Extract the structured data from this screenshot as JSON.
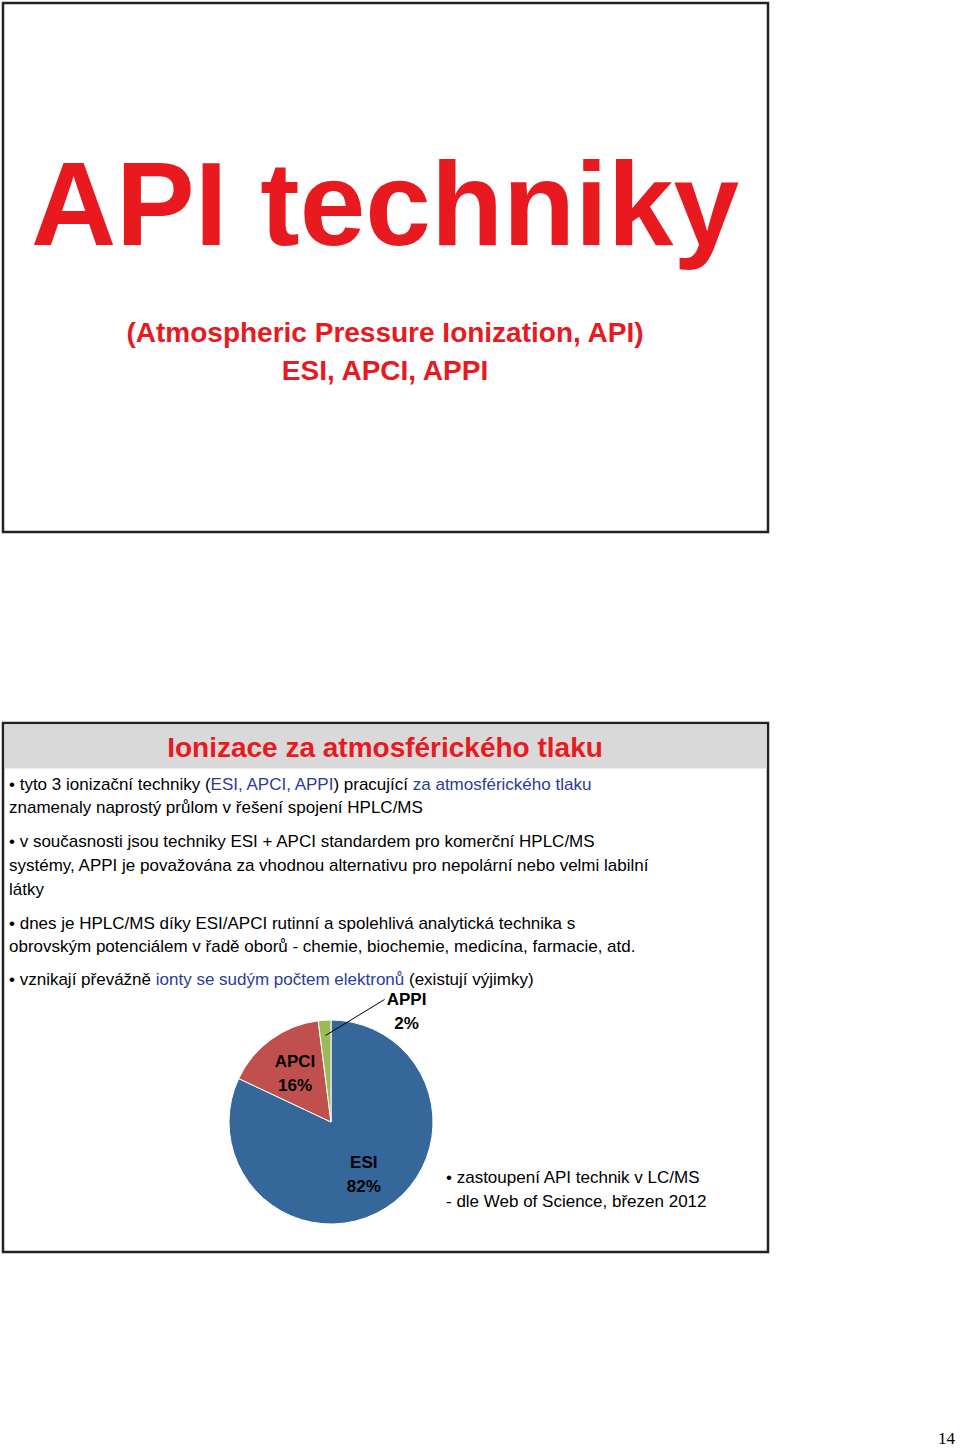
{
  "slide1": {
    "title": "API techniky",
    "subtitle": [
      "(Atmospheric Pressure Ionization, API)",
      "ESI, APCI, APPI"
    ]
  },
  "slide2": {
    "title": "Ionizace za atmosférického tlaku",
    "bullets": [
      [
        {
          "text": "• tyto 3 ionizační techniky (",
          "color": "#000000"
        },
        {
          "text": "ESI, APCI, APPI",
          "color": "#2a3c9c"
        },
        {
          "text": ") pracující ",
          "color": "#000000"
        },
        {
          "text": "za atmosférického tlaku",
          "color": "#2a3c9c"
        }
      ],
      [
        {
          "text": "znamenaly naprostý průlom v řešení spojení HPLC/MS",
          "color": "#000000"
        }
      ],
      [
        {
          "text": "• v současnosti jsou techniky ESI + APCI standardem pro komerční HPLC/MS",
          "color": "#000000"
        }
      ],
      [
        {
          "text": "systémy, APPI je považována za vhodnou alternativu pro nepolární nebo velmi labilní",
          "color": "#000000"
        }
      ],
      [
        {
          "text": "látky",
          "color": "#000000"
        }
      ],
      [
        {
          "text": "• dnes je HPLC/MS díky ESI/APCI rutinní a spolehlivá analytická technika s",
          "color": "#000000"
        }
      ],
      [
        {
          "text": "obrovským potenciálem v řadě oborů - chemie, biochemie, medicína, farmacie, atd.",
          "color": "#000000"
        }
      ],
      [
        {
          "text": "• vznikají převážně ",
          "color": "#000000"
        },
        {
          "text": "ionty se sudým počtem elektronů",
          "color": "#2a3c9c"
        },
        {
          "text": " (existují výjimky)",
          "color": "#000000"
        }
      ]
    ]
  },
  "chart_data": {
    "type": "pie",
    "categories": [
      "ESI",
      "APCI",
      "APPI"
    ],
    "values": [
      82,
      16,
      2
    ],
    "value_labels": [
      "82%",
      "16%",
      "2%"
    ],
    "colors": [
      "#35679a",
      "#c0504d",
      "#9bbb59"
    ],
    "data_labels": true
  },
  "note": [
    "• zastoupení API technik v LC/MS",
    "- dle Web of Science, březen 2012"
  ],
  "page_number": "14"
}
